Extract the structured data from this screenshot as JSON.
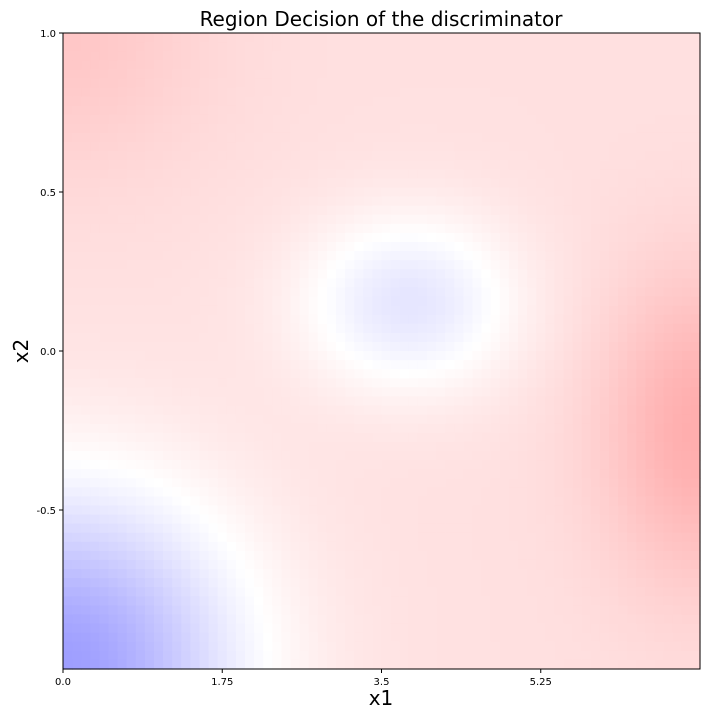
{
  "chart_data": {
    "type": "heatmap",
    "title": "Region Decision of the discriminator",
    "xlabel": "x1",
    "ylabel": "x2",
    "xlim": [
      0.0,
      7.0
    ],
    "ylim": [
      -1.0,
      1.0
    ],
    "x_ticks": [
      0.0,
      1.75,
      3.5,
      5.25
    ],
    "x_tick_labels": [
      "0.0",
      "1.75",
      "3.5",
      "5.25"
    ],
    "y_ticks": [
      -0.5,
      0.0,
      0.5,
      1.0
    ],
    "y_tick_labels": [
      "-0.5",
      "0.0",
      "0.5",
      "1.0"
    ],
    "colormap": "bwr",
    "colors": {
      "low": "#0000ff",
      "mid": "#ffffff",
      "high": "#ff0000"
    },
    "grid": false,
    "field_features": [
      {
        "kind": "blue-blob",
        "x": 3.8,
        "y": 0.15,
        "sx": 1.2,
        "sy": 0.28,
        "strength": 0.22
      },
      {
        "kind": "blue-corner",
        "x": 0.0,
        "y": -1.0,
        "sx": 1.9,
        "sy": 0.55,
        "strength": 0.5
      },
      {
        "kind": "red-spot",
        "x": 7.0,
        "y": -0.25,
        "sx": 1.1,
        "sy": 0.5,
        "strength": 0.2
      },
      {
        "kind": "red-corner",
        "x": 0.0,
        "y": 1.0,
        "sx": 1.6,
        "sy": 0.45,
        "strength": 0.1
      }
    ],
    "base_level": 0.12
  }
}
